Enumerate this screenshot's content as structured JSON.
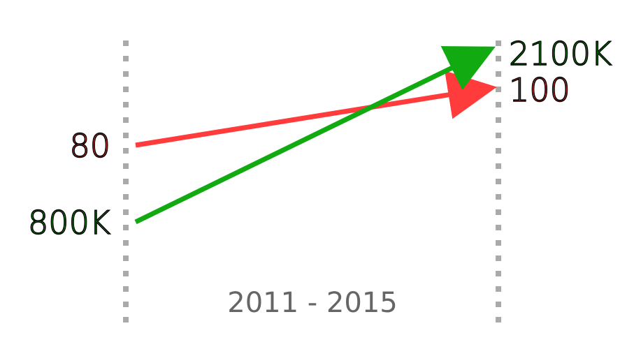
{
  "chart_data": {
    "type": "slope",
    "period_label": "2011 - 2015",
    "x": [
      "2011",
      "2015"
    ],
    "series": [
      {
        "color": "#ff3b3b",
        "start_label": "80",
        "end_label": "100",
        "values": [
          80,
          100
        ]
      },
      {
        "color": "#11aa11",
        "start_label": "800K",
        "end_label": "2100K",
        "values": [
          800000,
          2100000
        ]
      }
    ],
    "grid": false,
    "axis_style": "dotted-verticals"
  }
}
